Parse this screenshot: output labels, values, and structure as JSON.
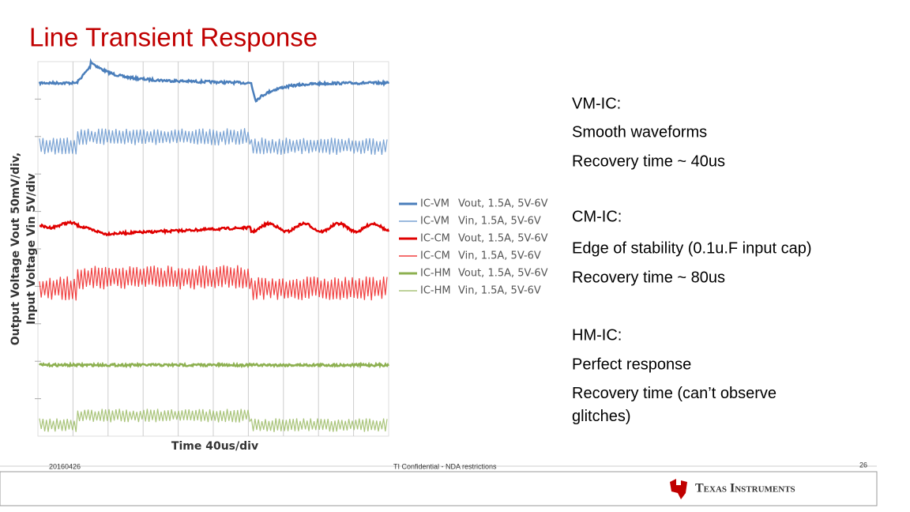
{
  "title": "Line Transient Response",
  "chart": {
    "y_label": [
      "Output Voltage  Vout  50mV/div,",
      "Input Voltage  Vin  5V/div"
    ],
    "x_label": "Time  40us/div",
    "legend": [
      {
        "name": "IC-VM",
        "detail": "Vout, 1.5A, 5V-6V",
        "color": "#4a7ebb"
      },
      {
        "name": "IC-VM",
        "detail": "Vin, 1.5A, 5V-6V",
        "color": "#7aa3d4"
      },
      {
        "name": "IC-CM",
        "detail": "Vout, 1.5A, 5V-6V",
        "color": "#e00000"
      },
      {
        "name": "IC-CM",
        "detail": "Vin, 1.5A, 5V-6V",
        "color": "#f04040"
      },
      {
        "name": "IC-HM",
        "detail": "Vout, 1.5A, 5V-6V",
        "color": "#8db050"
      },
      {
        "name": "IC-HM",
        "detail": "Vin, 1.5A, 5V-6V",
        "color": "#a9c47a"
      }
    ]
  },
  "sections": [
    {
      "heading": "VM-IC:",
      "items": [
        "Smooth waveforms",
        "Recovery time ~ 40us"
      ]
    },
    {
      "heading": "CM-IC:",
      "items": [
        "Edge of stability (0.1u.F input cap)",
        "Recovery time ~ 80us"
      ]
    },
    {
      "heading": "HM-IC:",
      "items": [
        "Perfect response",
        "Recovery time (can’t observe glitches)"
      ]
    }
  ],
  "footer": {
    "date": "20160426",
    "confidential": "TI Confidential - NDA restrictions",
    "page": "26",
    "logo": "Texas Instruments"
  }
}
